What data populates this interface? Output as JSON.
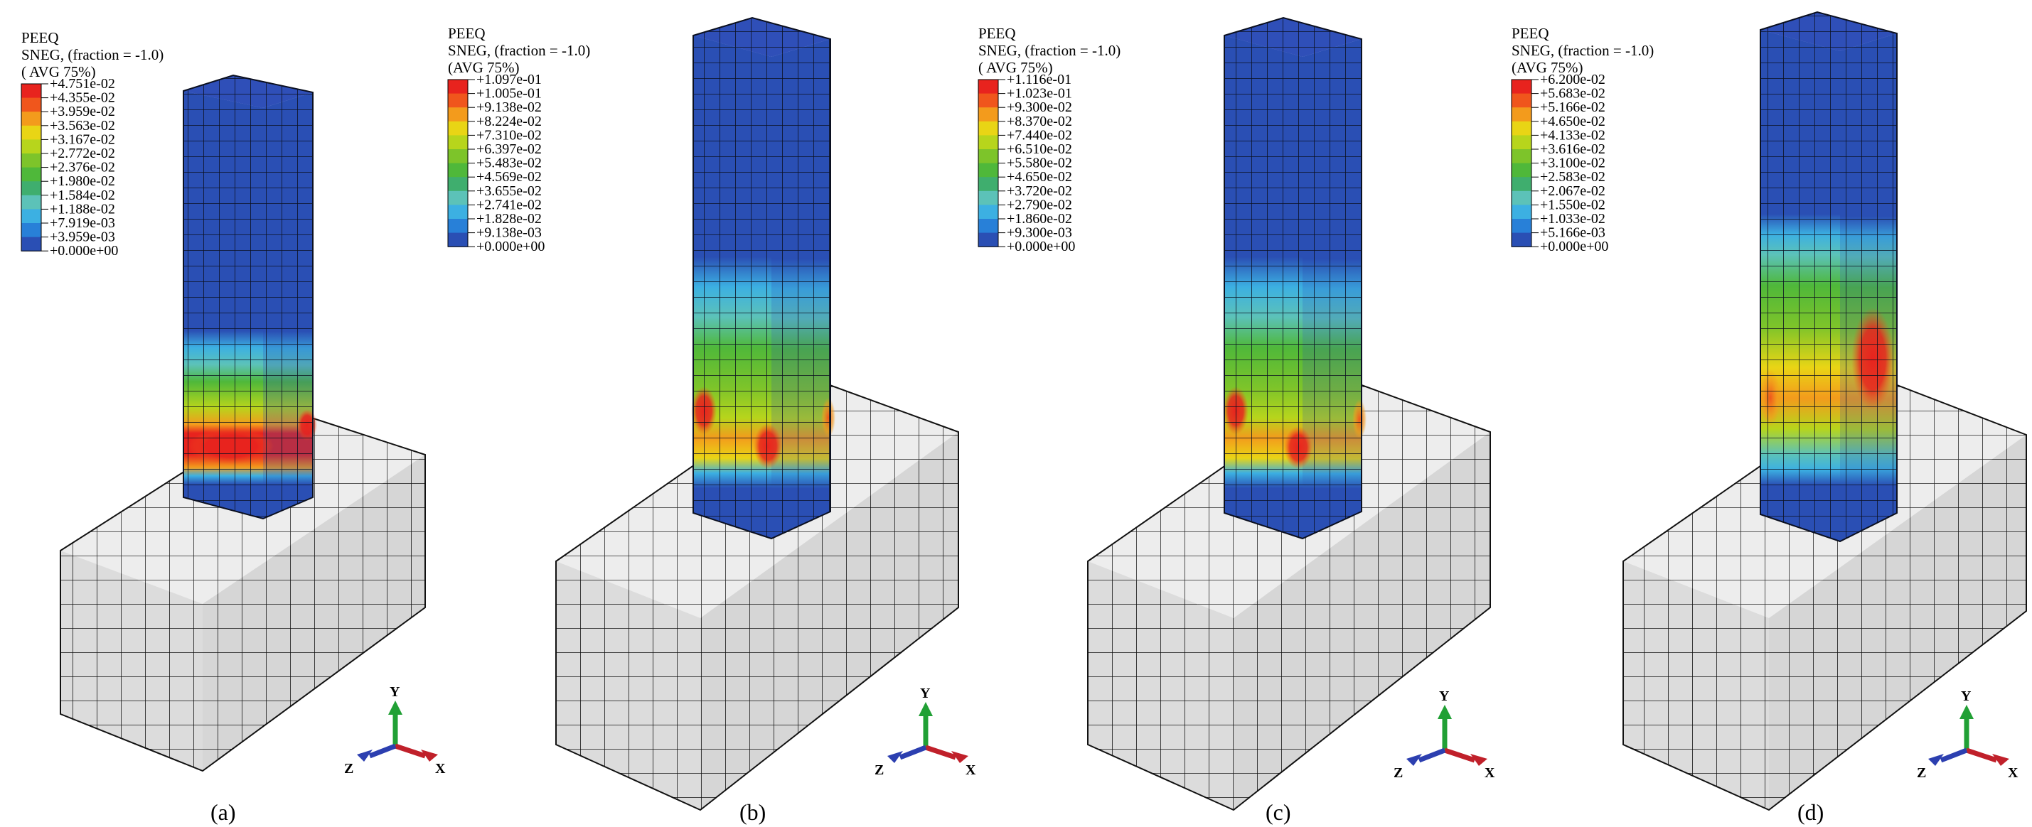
{
  "panels": [
    {
      "caption": "(a)",
      "legend": {
        "variable": "PEEQ",
        "section": "SNEG, (fraction = -1.0)",
        "averaging": "( AVG 75%)",
        "values": [
          "+4.751e-02",
          "+4.355e-02",
          "+3.959e-02",
          "+3.563e-02",
          "+3.167e-02",
          "+2.772e-02",
          "+2.376e-02",
          "+1.980e-02",
          "+1.584e-02",
          "+1.188e-02",
          "+7.919e-03",
          "+3.959e-03",
          "+0.000e+00"
        ]
      },
      "triad": {
        "y": "Y",
        "z": "Z",
        "x": "X"
      }
    },
    {
      "caption": "(b)",
      "legend": {
        "variable": "PEEQ",
        "section": "SNEG, (fraction = -1.0)",
        "averaging": "(AVG 75%)",
        "values": [
          "+1.097e-01",
          "+1.005e-01",
          "+9.138e-02",
          "+8.224e-02",
          "+7.310e-02",
          "+6.397e-02",
          "+5.483e-02",
          "+4.569e-02",
          "+3.655e-02",
          "+2.741e-02",
          "+1.828e-02",
          "+9.138e-03",
          "+0.000e+00"
        ]
      },
      "triad": {
        "y": "Y",
        "z": "Z",
        "x": "X"
      }
    },
    {
      "caption": "(c)",
      "legend": {
        "variable": "PEEQ",
        "section": "SNEG, (fraction = -1.0)",
        "averaging": "( AVG 75%)",
        "values": [
          "+1.116e-01",
          "+1.023e-01",
          "+9.300e-02",
          "+8.370e-02",
          "+7.440e-02",
          "+6.510e-02",
          "+5.580e-02",
          "+4.650e-02",
          "+3.720e-02",
          "+2.790e-02",
          "+1.860e-02",
          "+9.300e-03",
          "+0.000e+00"
        ]
      },
      "triad": {
        "y": "Y",
        "z": "Z",
        "x": "X"
      }
    },
    {
      "caption": "(d)",
      "legend": {
        "variable": "PEEQ",
        "section": "SNEG, (fraction = -1.0)",
        "averaging": "(AVG 75%)",
        "values": [
          "+6.200e-02",
          "+5.683e-02",
          "+5.166e-02",
          "+4.650e-02",
          "+4.133e-02",
          "+3.616e-02",
          "+3.100e-02",
          "+2.583e-02",
          "+2.067e-02",
          "+1.550e-02",
          "+1.033e-02",
          "+5.166e-03",
          "+0.000e+00"
        ]
      },
      "triad": {
        "y": "Y",
        "z": "Z",
        "x": "X"
      }
    }
  ],
  "colors": {
    "contour_scale": [
      "#e8231e",
      "#f0561c",
      "#f39b1c",
      "#e9d515",
      "#b7d51c",
      "#7dc42a",
      "#4fb83a",
      "#3fae6e",
      "#5cc2b8",
      "#3cb0e2",
      "#2880d8",
      "#2a4fb4"
    ],
    "column_base": "#2b46ad",
    "block_fill": "#e6e6e6",
    "axis_y": "#21a035",
    "axis_x": "#c0202a",
    "axis_z": "#2c3fb0"
  }
}
